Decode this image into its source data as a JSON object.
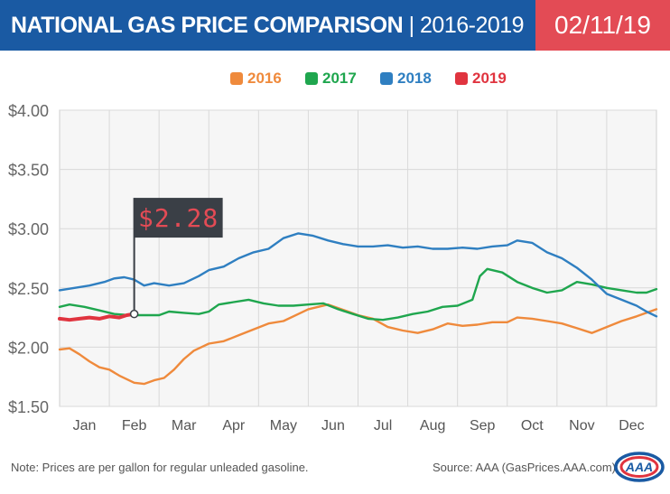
{
  "header": {
    "title_bold": "NATIONAL GAS PRICE COMPARISON",
    "title_light": " | 2016-2019",
    "date": "02/11/19"
  },
  "colors": {
    "header_bg": "#1a5aa3",
    "date_bg": "#e34b55",
    "plot_bg": "#f6f6f6",
    "grid": "#d9d9d9",
    "tooltip_bg": "#3a3f46",
    "tooltip_text": "#e34b55"
  },
  "chart_data": {
    "type": "line",
    "xlabel": "",
    "ylabel": "",
    "ylim": [
      1.5,
      4.0
    ],
    "yticks": [
      {
        "value": 1.5,
        "label": "$1.50"
      },
      {
        "value": 2.0,
        "label": "$2.00"
      },
      {
        "value": 2.5,
        "label": "$2.50"
      },
      {
        "value": 3.0,
        "label": "$3.00"
      },
      {
        "value": 3.5,
        "label": "$3.50"
      },
      {
        "value": 4.0,
        "label": "$4.00"
      }
    ],
    "xlim": [
      0,
      12
    ],
    "months": [
      "Jan",
      "Feb",
      "Mar",
      "Apr",
      "May",
      "Jun",
      "Jul",
      "Aug",
      "Sep",
      "Oct",
      "Nov",
      "Dec"
    ],
    "grid": true,
    "legend_position": "top-center",
    "series": [
      {
        "name": "2016",
        "color": "#ef8a3c",
        "points": [
          [
            0,
            1.98
          ],
          [
            0.2,
            1.99
          ],
          [
            0.4,
            1.94
          ],
          [
            0.6,
            1.88
          ],
          [
            0.8,
            1.83
          ],
          [
            1.0,
            1.81
          ],
          [
            1.2,
            1.76
          ],
          [
            1.5,
            1.7
          ],
          [
            1.7,
            1.69
          ],
          [
            1.9,
            1.72
          ],
          [
            2.1,
            1.74
          ],
          [
            2.3,
            1.81
          ],
          [
            2.5,
            1.9
          ],
          [
            2.7,
            1.97
          ],
          [
            3.0,
            2.03
          ],
          [
            3.3,
            2.05
          ],
          [
            3.6,
            2.1
          ],
          [
            3.9,
            2.15
          ],
          [
            4.2,
            2.2
          ],
          [
            4.5,
            2.22
          ],
          [
            4.8,
            2.28
          ],
          [
            5.0,
            2.32
          ],
          [
            5.2,
            2.34
          ],
          [
            5.4,
            2.36
          ],
          [
            5.6,
            2.33
          ],
          [
            5.8,
            2.3
          ],
          [
            6.0,
            2.27
          ],
          [
            6.3,
            2.24
          ],
          [
            6.6,
            2.17
          ],
          [
            6.9,
            2.14
          ],
          [
            7.2,
            2.12
          ],
          [
            7.5,
            2.15
          ],
          [
            7.8,
            2.2
          ],
          [
            8.1,
            2.18
          ],
          [
            8.4,
            2.19
          ],
          [
            8.7,
            2.21
          ],
          [
            9.0,
            2.21
          ],
          [
            9.2,
            2.25
          ],
          [
            9.5,
            2.24
          ],
          [
            9.8,
            2.22
          ],
          [
            10.1,
            2.2
          ],
          [
            10.4,
            2.16
          ],
          [
            10.7,
            2.12
          ],
          [
            11.0,
            2.17
          ],
          [
            11.3,
            2.22
          ],
          [
            11.6,
            2.26
          ],
          [
            12.0,
            2.32
          ]
        ]
      },
      {
        "name": "2017",
        "color": "#1fa64e",
        "points": [
          [
            0,
            2.34
          ],
          [
            0.2,
            2.36
          ],
          [
            0.5,
            2.34
          ],
          [
            0.8,
            2.31
          ],
          [
            1.1,
            2.28
          ],
          [
            1.4,
            2.27
          ],
          [
            1.7,
            2.27
          ],
          [
            2.0,
            2.27
          ],
          [
            2.2,
            2.3
          ],
          [
            2.5,
            2.29
          ],
          [
            2.8,
            2.28
          ],
          [
            3.0,
            2.3
          ],
          [
            3.2,
            2.36
          ],
          [
            3.5,
            2.38
          ],
          [
            3.8,
            2.4
          ],
          [
            4.1,
            2.37
          ],
          [
            4.4,
            2.35
          ],
          [
            4.7,
            2.35
          ],
          [
            5.0,
            2.36
          ],
          [
            5.3,
            2.37
          ],
          [
            5.6,
            2.32
          ],
          [
            5.9,
            2.28
          ],
          [
            6.2,
            2.24
          ],
          [
            6.5,
            2.23
          ],
          [
            6.8,
            2.25
          ],
          [
            7.1,
            2.28
          ],
          [
            7.4,
            2.3
          ],
          [
            7.7,
            2.34
          ],
          [
            8.0,
            2.35
          ],
          [
            8.3,
            2.4
          ],
          [
            8.45,
            2.6
          ],
          [
            8.6,
            2.66
          ],
          [
            8.9,
            2.63
          ],
          [
            9.2,
            2.55
          ],
          [
            9.5,
            2.5
          ],
          [
            9.8,
            2.46
          ],
          [
            10.1,
            2.48
          ],
          [
            10.4,
            2.55
          ],
          [
            10.7,
            2.53
          ],
          [
            11.0,
            2.5
          ],
          [
            11.3,
            2.48
          ],
          [
            11.6,
            2.46
          ],
          [
            11.8,
            2.46
          ],
          [
            12.0,
            2.49
          ]
        ]
      },
      {
        "name": "2018",
        "color": "#2f7fc1",
        "points": [
          [
            0,
            2.48
          ],
          [
            0.3,
            2.5
          ],
          [
            0.6,
            2.52
          ],
          [
            0.9,
            2.55
          ],
          [
            1.1,
            2.58
          ],
          [
            1.3,
            2.59
          ],
          [
            1.5,
            2.57
          ],
          [
            1.7,
            2.52
          ],
          [
            1.9,
            2.54
          ],
          [
            2.2,
            2.52
          ],
          [
            2.5,
            2.54
          ],
          [
            2.8,
            2.6
          ],
          [
            3.0,
            2.65
          ],
          [
            3.3,
            2.68
          ],
          [
            3.6,
            2.75
          ],
          [
            3.9,
            2.8
          ],
          [
            4.2,
            2.83
          ],
          [
            4.5,
            2.92
          ],
          [
            4.8,
            2.96
          ],
          [
            5.1,
            2.94
          ],
          [
            5.4,
            2.9
          ],
          [
            5.7,
            2.87
          ],
          [
            6.0,
            2.85
          ],
          [
            6.3,
            2.85
          ],
          [
            6.6,
            2.86
          ],
          [
            6.9,
            2.84
          ],
          [
            7.2,
            2.85
          ],
          [
            7.5,
            2.83
          ],
          [
            7.8,
            2.83
          ],
          [
            8.1,
            2.84
          ],
          [
            8.4,
            2.83
          ],
          [
            8.7,
            2.85
          ],
          [
            9.0,
            2.86
          ],
          [
            9.2,
            2.9
          ],
          [
            9.5,
            2.88
          ],
          [
            9.8,
            2.8
          ],
          [
            10.1,
            2.75
          ],
          [
            10.4,
            2.67
          ],
          [
            10.7,
            2.57
          ],
          [
            11.0,
            2.45
          ],
          [
            11.3,
            2.4
          ],
          [
            11.6,
            2.35
          ],
          [
            11.8,
            2.3
          ],
          [
            12.0,
            2.26
          ]
        ]
      },
      {
        "name": "2019",
        "color": "#e0343f",
        "points": [
          [
            0,
            2.24
          ],
          [
            0.2,
            2.23
          ],
          [
            0.4,
            2.24
          ],
          [
            0.6,
            2.25
          ],
          [
            0.8,
            2.24
          ],
          [
            1.0,
            2.26
          ],
          [
            1.2,
            2.25
          ],
          [
            1.35,
            2.27
          ],
          [
            1.5,
            2.28
          ]
        ]
      }
    ],
    "annotation": {
      "x": 1.5,
      "y": 2.28,
      "label": "$2.28"
    }
  },
  "footer": {
    "note": "Note: Prices are per gallon for regular unleaded gasoline.",
    "source": "Source: AAA (GasPrices.AAA.com)"
  },
  "logo": {
    "text": "AAA"
  }
}
